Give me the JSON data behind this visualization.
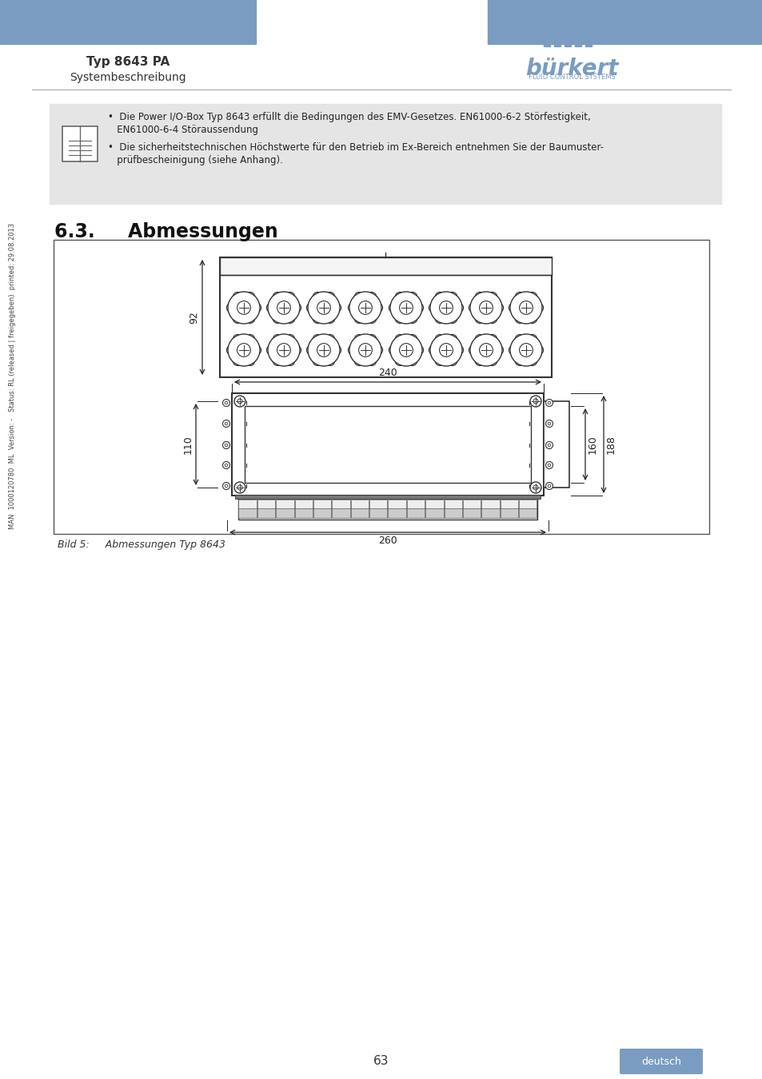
{
  "page_title": "Typ 8643 PA",
  "page_subtitle": "Systembeschreibung",
  "section_title": "6.3.     Abmessungen",
  "info_text_line1": "•  Die Power I/O-Box Typ 8643 erfüllt die Bedingungen des EMV-Gesetzes. EN61000-6-2 Störfestigkeit,",
  "info_text_line2": "   EN61000-6-4 Störaussendung",
  "info_text_line3": "•  Die sicherheitstechnischen Höchstwerte für den Betrieb im Ex-Bereich entnehmen Sie der Baumuster-",
  "info_text_line4": "   prüfbescheinigung (siehe Anhang).",
  "caption": "Bild 5:     Abmessungen Typ 8643",
  "side_text": "MAN  1000120780  ML  Version: -   Status: RL (released | freigegeben)  printed: 29.08.2013",
  "page_number": "63",
  "lang_button": "deutsch",
  "header_color": "#7a9cc0",
  "bg_color": "#ffffff",
  "info_bg_color": "#e5e5e5",
  "dim_color": "#222222",
  "draw_color": "#333333"
}
